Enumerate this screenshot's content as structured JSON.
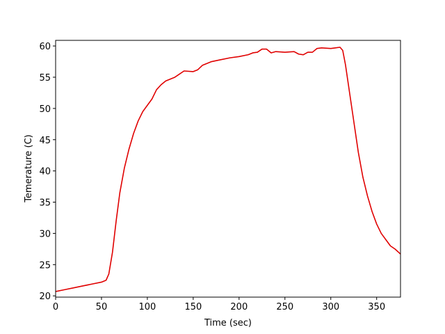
{
  "chart_data": {
    "type": "line",
    "xlabel": "Time (sec)",
    "ylabel": "Temerature (C)",
    "x": [
      0,
      10,
      20,
      30,
      40,
      50,
      55,
      58,
      62,
      66,
      70,
      75,
      80,
      85,
      90,
      95,
      100,
      105,
      110,
      115,
      120,
      130,
      140,
      150,
      155,
      160,
      170,
      180,
      190,
      200,
      210,
      215,
      220,
      225,
      230,
      235,
      240,
      250,
      260,
      265,
      270,
      275,
      280,
      285,
      290,
      300,
      305,
      310,
      313,
      316,
      320,
      325,
      330,
      335,
      340,
      345,
      350,
      355,
      360,
      365,
      370,
      376
    ],
    "series": [
      {
        "name": "temperature",
        "color": "#e00000",
        "values": [
          20.7,
          21.0,
          21.3,
          21.6,
          21.9,
          22.2,
          22.5,
          23.5,
          27,
          32,
          36.5,
          40.5,
          43.5,
          46,
          48,
          49.5,
          50.5,
          51.5,
          53,
          53.8,
          54.4,
          55.0,
          56.0,
          55.9,
          56.2,
          56.9,
          57.5,
          57.8,
          58.1,
          58.3,
          58.6,
          58.9,
          59.0,
          59.5,
          59.5,
          58.9,
          59.1,
          59.0,
          59.1,
          58.7,
          58.6,
          59.0,
          59.0,
          59.6,
          59.7,
          59.6,
          59.7,
          59.8,
          59.3,
          57,
          53,
          48,
          43,
          39,
          36,
          33.5,
          31.5,
          30,
          29,
          28,
          27.5,
          26.7
        ]
      }
    ],
    "xlim": [
      0,
      376
    ],
    "ylim": [
      19.8,
      60.9
    ],
    "xticks": [
      0,
      50,
      100,
      150,
      200,
      250,
      300,
      350
    ],
    "yticks": [
      20,
      25,
      30,
      35,
      40,
      45,
      50,
      55,
      60
    ],
    "grid": false
  }
}
